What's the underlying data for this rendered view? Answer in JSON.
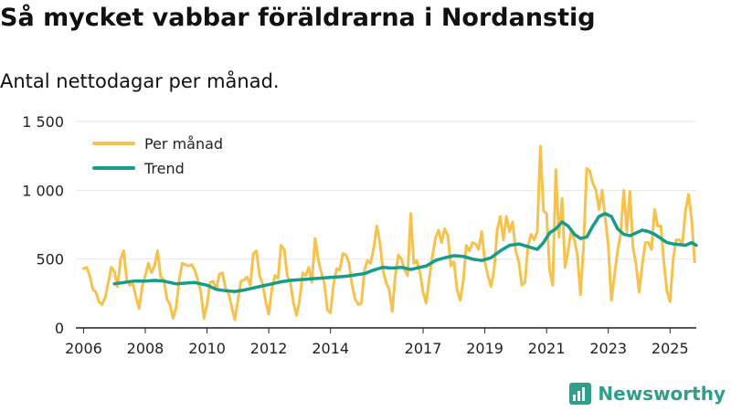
{
  "header": {
    "title": "Så mycket vabbar föräldrarna i Nordanstig",
    "subtitle": "Antal nettodagar per månad."
  },
  "brand": {
    "name": "Newsworthy"
  },
  "chart_data": {
    "type": "line",
    "title": "Så mycket vabbar föräldrarna i Nordanstig",
    "subtitle": "Antal nettodagar per månad.",
    "xlabel": "",
    "ylabel": "",
    "xlim": [
      2005.75,
      2025.85
    ],
    "ylim": [
      0,
      1500
    ],
    "y_ticks": [
      0,
      500,
      1000,
      1500
    ],
    "y_tick_labels": [
      "0",
      "500",
      "1 000",
      "1 500"
    ],
    "x_ticks": [
      2006,
      2008,
      2010,
      2012,
      2014,
      2017,
      2019,
      2021,
      2023,
      2025
    ],
    "x_tick_labels": [
      "2006",
      "2008",
      "2010",
      "2012",
      "2014",
      "2017",
      "2019",
      "2021",
      "2023",
      "2025"
    ],
    "legend_position": "top-left",
    "colors": {
      "monthly": "#f7c24c",
      "trend": "#169c8a",
      "axis": "#222222",
      "grid": "#e6e6e6",
      "brand": "#2f9e8a"
    },
    "series": [
      {
        "name": "Per månad",
        "color": "#f7c24c",
        "points": [
          [
            2006.0,
            430
          ],
          [
            2006.1,
            440
          ],
          [
            2006.2,
            380
          ],
          [
            2006.3,
            280
          ],
          [
            2006.4,
            260
          ],
          [
            2006.5,
            190
          ],
          [
            2006.6,
            170
          ],
          [
            2006.7,
            220
          ],
          [
            2006.8,
            330
          ],
          [
            2006.9,
            440
          ],
          [
            2007.0,
            410
          ],
          [
            2007.1,
            300
          ],
          [
            2007.2,
            500
          ],
          [
            2007.3,
            560
          ],
          [
            2007.4,
            350
          ],
          [
            2007.5,
            310
          ],
          [
            2007.6,
            320
          ],
          [
            2007.7,
            220
          ],
          [
            2007.8,
            140
          ],
          [
            2007.9,
            300
          ],
          [
            2008.0,
            380
          ],
          [
            2008.1,
            470
          ],
          [
            2008.2,
            400
          ],
          [
            2008.3,
            450
          ],
          [
            2008.4,
            560
          ],
          [
            2008.5,
            370
          ],
          [
            2008.6,
            350
          ],
          [
            2008.7,
            210
          ],
          [
            2008.8,
            170
          ],
          [
            2008.9,
            70
          ],
          [
            2009.0,
            150
          ],
          [
            2009.1,
            350
          ],
          [
            2009.2,
            470
          ],
          [
            2009.3,
            460
          ],
          [
            2009.4,
            450
          ],
          [
            2009.5,
            460
          ],
          [
            2009.6,
            420
          ],
          [
            2009.7,
            350
          ],
          [
            2009.8,
            260
          ],
          [
            2009.9,
            70
          ],
          [
            2010.0,
            170
          ],
          [
            2010.1,
            330
          ],
          [
            2010.2,
            340
          ],
          [
            2010.3,
            280
          ],
          [
            2010.4,
            390
          ],
          [
            2010.5,
            400
          ],
          [
            2010.6,
            290
          ],
          [
            2010.7,
            250
          ],
          [
            2010.8,
            150
          ],
          [
            2010.9,
            60
          ],
          [
            2011.0,
            200
          ],
          [
            2011.1,
            340
          ],
          [
            2011.2,
            350
          ],
          [
            2011.3,
            370
          ],
          [
            2011.4,
            310
          ],
          [
            2011.5,
            540
          ],
          [
            2011.6,
            560
          ],
          [
            2011.7,
            380
          ],
          [
            2011.8,
            320
          ],
          [
            2011.9,
            190
          ],
          [
            2012.0,
            100
          ],
          [
            2012.1,
            280
          ],
          [
            2012.2,
            380
          ],
          [
            2012.3,
            360
          ],
          [
            2012.4,
            600
          ],
          [
            2012.5,
            570
          ],
          [
            2012.6,
            380
          ],
          [
            2012.7,
            330
          ],
          [
            2012.8,
            180
          ],
          [
            2012.9,
            90
          ],
          [
            2013.0,
            200
          ],
          [
            2013.1,
            400
          ],
          [
            2013.2,
            380
          ],
          [
            2013.3,
            440
          ],
          [
            2013.4,
            330
          ],
          [
            2013.5,
            650
          ],
          [
            2013.6,
            500
          ],
          [
            2013.7,
            400
          ],
          [
            2013.8,
            330
          ],
          [
            2013.9,
            130
          ],
          [
            2014.0,
            110
          ],
          [
            2014.1,
            320
          ],
          [
            2014.2,
            430
          ],
          [
            2014.3,
            420
          ],
          [
            2014.4,
            540
          ],
          [
            2014.5,
            530
          ],
          [
            2014.6,
            470
          ],
          [
            2014.7,
            310
          ],
          [
            2014.8,
            210
          ],
          [
            2014.9,
            170
          ],
          [
            2015.0,
            180
          ],
          [
            2015.1,
            420
          ],
          [
            2015.2,
            490
          ],
          [
            2015.3,
            470
          ],
          [
            2015.4,
            580
          ],
          [
            2015.5,
            740
          ],
          [
            2015.6,
            620
          ],
          [
            2015.7,
            420
          ],
          [
            2015.8,
            330
          ],
          [
            2015.9,
            280
          ],
          [
            2016.0,
            120
          ],
          [
            2016.1,
            380
          ],
          [
            2016.2,
            530
          ],
          [
            2016.3,
            500
          ],
          [
            2016.4,
            420
          ],
          [
            2016.5,
            380
          ],
          [
            2016.6,
            830
          ],
          [
            2016.7,
            470
          ],
          [
            2016.8,
            490
          ],
          [
            2016.9,
            400
          ],
          [
            2017.0,
            260
          ],
          [
            2017.1,
            180
          ],
          [
            2017.2,
            360
          ],
          [
            2017.3,
            520
          ],
          [
            2017.4,
            650
          ],
          [
            2017.5,
            710
          ],
          [
            2017.6,
            620
          ],
          [
            2017.7,
            720
          ],
          [
            2017.8,
            670
          ],
          [
            2017.9,
            450
          ],
          [
            2018.0,
            480
          ],
          [
            2018.1,
            280
          ],
          [
            2018.2,
            200
          ],
          [
            2018.3,
            340
          ],
          [
            2018.4,
            600
          ],
          [
            2018.5,
            560
          ],
          [
            2018.6,
            620
          ],
          [
            2018.7,
            610
          ],
          [
            2018.8,
            570
          ],
          [
            2018.9,
            700
          ],
          [
            2019.0,
            480
          ],
          [
            2019.1,
            380
          ],
          [
            2019.2,
            300
          ],
          [
            2019.3,
            420
          ],
          [
            2019.4,
            710
          ],
          [
            2019.5,
            810
          ],
          [
            2019.6,
            640
          ],
          [
            2019.7,
            810
          ],
          [
            2019.8,
            700
          ],
          [
            2019.9,
            770
          ],
          [
            2020.0,
            560
          ],
          [
            2020.1,
            480
          ],
          [
            2020.2,
            310
          ],
          [
            2020.3,
            330
          ],
          [
            2020.4,
            600
          ],
          [
            2020.5,
            680
          ],
          [
            2020.6,
            640
          ],
          [
            2020.7,
            700
          ],
          [
            2020.8,
            1320
          ],
          [
            2020.9,
            850
          ],
          [
            2021.0,
            830
          ],
          [
            2021.1,
            420
          ],
          [
            2021.2,
            310
          ],
          [
            2021.3,
            1150
          ],
          [
            2021.4,
            660
          ],
          [
            2021.5,
            940
          ],
          [
            2021.6,
            440
          ],
          [
            2021.7,
            560
          ],
          [
            2021.8,
            720
          ],
          [
            2021.9,
            640
          ],
          [
            2022.0,
            530
          ],
          [
            2022.1,
            240
          ],
          [
            2022.2,
            600
          ],
          [
            2022.3,
            1160
          ],
          [
            2022.4,
            1140
          ],
          [
            2022.5,
            1050
          ],
          [
            2022.6,
            1000
          ],
          [
            2022.7,
            860
          ],
          [
            2022.8,
            1000
          ],
          [
            2022.9,
            800
          ],
          [
            2023.0,
            600
          ],
          [
            2023.1,
            200
          ],
          [
            2023.2,
            380
          ],
          [
            2023.3,
            560
          ],
          [
            2023.4,
            680
          ],
          [
            2023.5,
            1000
          ],
          [
            2023.6,
            700
          ],
          [
            2023.7,
            990
          ],
          [
            2023.8,
            590
          ],
          [
            2023.9,
            460
          ],
          [
            2024.0,
            260
          ],
          [
            2024.1,
            460
          ],
          [
            2024.2,
            620
          ],
          [
            2024.3,
            620
          ],
          [
            2024.4,
            570
          ],
          [
            2024.5,
            860
          ],
          [
            2024.6,
            740
          ],
          [
            2024.7,
            740
          ],
          [
            2024.8,
            480
          ],
          [
            2024.9,
            270
          ],
          [
            2025.0,
            190
          ],
          [
            2025.1,
            500
          ],
          [
            2025.2,
            640
          ],
          [
            2025.3,
            640
          ],
          [
            2025.4,
            610
          ],
          [
            2025.5,
            850
          ],
          [
            2025.6,
            970
          ],
          [
            2025.7,
            790
          ],
          [
            2025.8,
            480
          ]
        ]
      },
      {
        "name": "Trend",
        "color": "#169c8a",
        "points": [
          [
            2007.0,
            320
          ],
          [
            2007.3,
            330
          ],
          [
            2007.6,
            340
          ],
          [
            2008.0,
            340
          ],
          [
            2008.3,
            345
          ],
          [
            2008.6,
            340
          ],
          [
            2009.0,
            320
          ],
          [
            2009.3,
            325
          ],
          [
            2009.6,
            330
          ],
          [
            2010.0,
            310
          ],
          [
            2010.3,
            280
          ],
          [
            2010.6,
            270
          ],
          [
            2010.9,
            265
          ],
          [
            2011.2,
            275
          ],
          [
            2011.5,
            290
          ],
          [
            2011.8,
            305
          ],
          [
            2012.1,
            320
          ],
          [
            2012.4,
            335
          ],
          [
            2012.7,
            345
          ],
          [
            2013.0,
            350
          ],
          [
            2013.3,
            355
          ],
          [
            2013.6,
            360
          ],
          [
            2013.9,
            365
          ],
          [
            2014.2,
            370
          ],
          [
            2014.5,
            375
          ],
          [
            2014.8,
            385
          ],
          [
            2015.1,
            395
          ],
          [
            2015.4,
            420
          ],
          [
            2015.7,
            440
          ],
          [
            2016.0,
            435
          ],
          [
            2016.3,
            440
          ],
          [
            2016.6,
            425
          ],
          [
            2016.9,
            440
          ],
          [
            2017.1,
            450
          ],
          [
            2017.4,
            490
          ],
          [
            2017.7,
            510
          ],
          [
            2018.0,
            525
          ],
          [
            2018.3,
            520
          ],
          [
            2018.6,
            500
          ],
          [
            2018.9,
            490
          ],
          [
            2019.2,
            510
          ],
          [
            2019.5,
            560
          ],
          [
            2019.8,
            600
          ],
          [
            2020.1,
            610
          ],
          [
            2020.4,
            590
          ],
          [
            2020.7,
            570
          ],
          [
            2020.9,
            620
          ],
          [
            2021.1,
            690
          ],
          [
            2021.3,
            720
          ],
          [
            2021.5,
            770
          ],
          [
            2021.7,
            740
          ],
          [
            2021.9,
            680
          ],
          [
            2022.1,
            650
          ],
          [
            2022.3,
            660
          ],
          [
            2022.5,
            740
          ],
          [
            2022.7,
            810
          ],
          [
            2022.9,
            830
          ],
          [
            2023.1,
            810
          ],
          [
            2023.3,
            720
          ],
          [
            2023.5,
            680
          ],
          [
            2023.7,
            670
          ],
          [
            2023.9,
            690
          ],
          [
            2024.1,
            710
          ],
          [
            2024.3,
            700
          ],
          [
            2024.5,
            680
          ],
          [
            2024.7,
            650
          ],
          [
            2024.9,
            620
          ],
          [
            2025.1,
            610
          ],
          [
            2025.3,
            605
          ],
          [
            2025.5,
            600
          ],
          [
            2025.7,
            620
          ],
          [
            2025.85,
            600
          ]
        ]
      }
    ]
  }
}
